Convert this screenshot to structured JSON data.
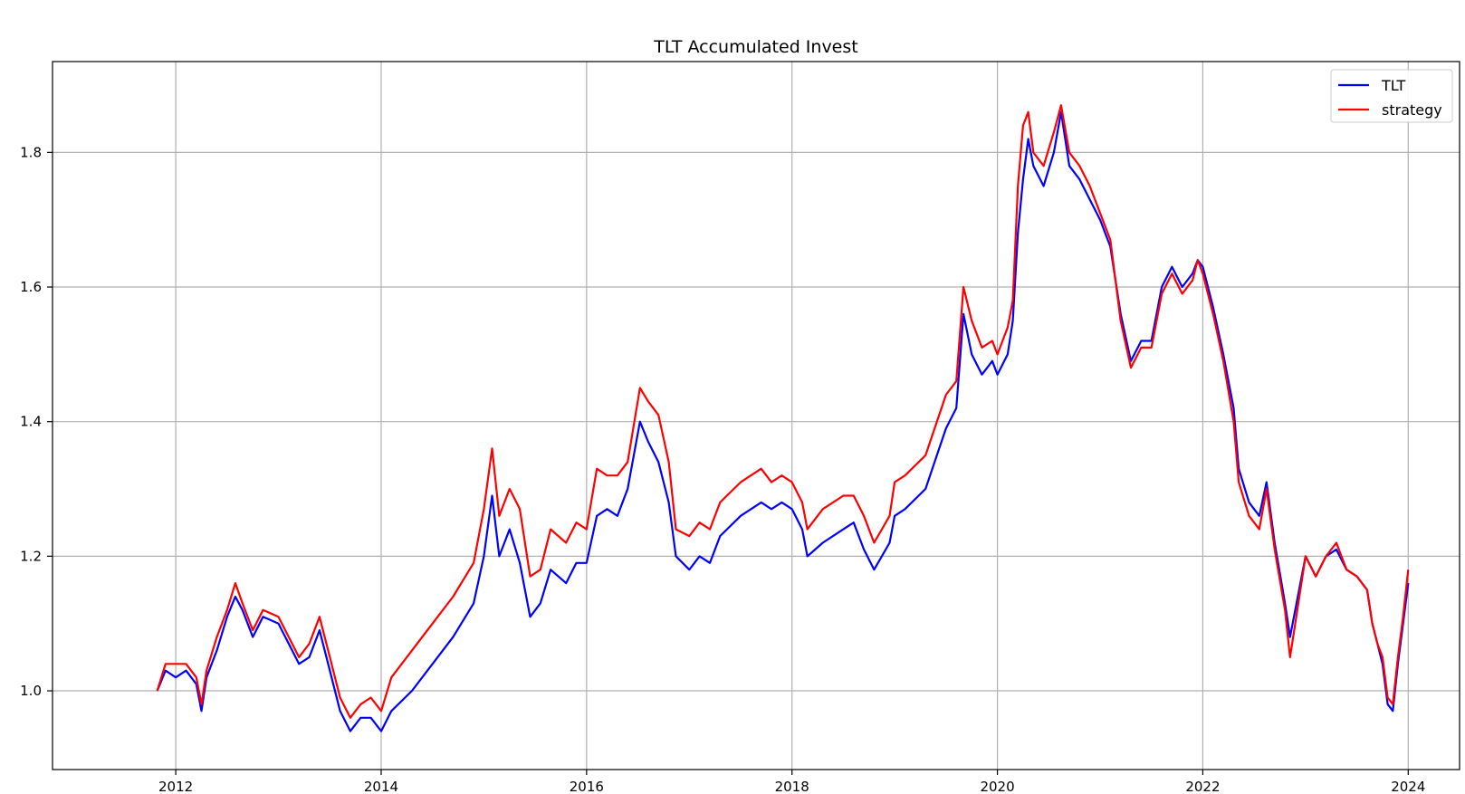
{
  "chart_data": {
    "type": "line",
    "title": "TLT Accumulated Invest",
    "xlabel": "",
    "ylabel": "",
    "grid": true,
    "legend_position": "top-right",
    "xlim": [
      2010.8,
      2024.5
    ],
    "ylim": [
      0.883,
      1.935
    ],
    "x_ticks": [
      2012,
      2014,
      2016,
      2018,
      2020,
      2022,
      2024
    ],
    "x_tick_labels": [
      "2012",
      "2014",
      "2016",
      "2018",
      "2020",
      "2022",
      "2024"
    ],
    "y_ticks": [
      1.0,
      1.2,
      1.4,
      1.6,
      1.8
    ],
    "y_tick_labels": [
      "1.0",
      "1.2",
      "1.4",
      "1.6",
      "1.8"
    ],
    "series": [
      {
        "name": "TLT",
        "color": "#0000ff",
        "points": [
          [
            2011.82,
            1.0
          ],
          [
            2011.9,
            1.03
          ],
          [
            2012.0,
            1.02
          ],
          [
            2012.1,
            1.03
          ],
          [
            2012.2,
            1.01
          ],
          [
            2012.25,
            0.97
          ],
          [
            2012.3,
            1.02
          ],
          [
            2012.4,
            1.06
          ],
          [
            2012.5,
            1.11
          ],
          [
            2012.58,
            1.14
          ],
          [
            2012.65,
            1.12
          ],
          [
            2012.75,
            1.08
          ],
          [
            2012.85,
            1.11
          ],
          [
            2013.0,
            1.1
          ],
          [
            2013.1,
            1.07
          ],
          [
            2013.2,
            1.04
          ],
          [
            2013.3,
            1.05
          ],
          [
            2013.4,
            1.09
          ],
          [
            2013.5,
            1.03
          ],
          [
            2013.6,
            0.97
          ],
          [
            2013.7,
            0.94
          ],
          [
            2013.8,
            0.96
          ],
          [
            2013.9,
            0.96
          ],
          [
            2014.0,
            0.94
          ],
          [
            2014.1,
            0.97
          ],
          [
            2014.3,
            1.0
          ],
          [
            2014.5,
            1.04
          ],
          [
            2014.7,
            1.08
          ],
          [
            2014.9,
            1.13
          ],
          [
            2015.0,
            1.2
          ],
          [
            2015.08,
            1.29
          ],
          [
            2015.15,
            1.2
          ],
          [
            2015.25,
            1.24
          ],
          [
            2015.35,
            1.19
          ],
          [
            2015.45,
            1.11
          ],
          [
            2015.55,
            1.13
          ],
          [
            2015.65,
            1.18
          ],
          [
            2015.8,
            1.16
          ],
          [
            2015.9,
            1.19
          ],
          [
            2016.0,
            1.19
          ],
          [
            2016.1,
            1.26
          ],
          [
            2016.2,
            1.27
          ],
          [
            2016.3,
            1.26
          ],
          [
            2016.4,
            1.3
          ],
          [
            2016.52,
            1.4
          ],
          [
            2016.6,
            1.37
          ],
          [
            2016.7,
            1.34
          ],
          [
            2016.8,
            1.28
          ],
          [
            2016.87,
            1.2
          ],
          [
            2017.0,
            1.18
          ],
          [
            2017.1,
            1.2
          ],
          [
            2017.2,
            1.19
          ],
          [
            2017.3,
            1.23
          ],
          [
            2017.5,
            1.26
          ],
          [
            2017.7,
            1.28
          ],
          [
            2017.8,
            1.27
          ],
          [
            2017.9,
            1.28
          ],
          [
            2018.0,
            1.27
          ],
          [
            2018.1,
            1.24
          ],
          [
            2018.15,
            1.2
          ],
          [
            2018.3,
            1.22
          ],
          [
            2018.5,
            1.24
          ],
          [
            2018.6,
            1.25
          ],
          [
            2018.7,
            1.21
          ],
          [
            2018.8,
            1.18
          ],
          [
            2018.95,
            1.22
          ],
          [
            2019.0,
            1.26
          ],
          [
            2019.1,
            1.27
          ],
          [
            2019.3,
            1.3
          ],
          [
            2019.5,
            1.39
          ],
          [
            2019.6,
            1.42
          ],
          [
            2019.67,
            1.56
          ],
          [
            2019.75,
            1.5
          ],
          [
            2019.85,
            1.47
          ],
          [
            2019.95,
            1.49
          ],
          [
            2020.0,
            1.47
          ],
          [
            2020.1,
            1.5
          ],
          [
            2020.15,
            1.55
          ],
          [
            2020.2,
            1.68
          ],
          [
            2020.25,
            1.76
          ],
          [
            2020.3,
            1.82
          ],
          [
            2020.35,
            1.78
          ],
          [
            2020.45,
            1.75
          ],
          [
            2020.55,
            1.8
          ],
          [
            2020.62,
            1.86
          ],
          [
            2020.7,
            1.78
          ],
          [
            2020.8,
            1.76
          ],
          [
            2020.9,
            1.73
          ],
          [
            2021.0,
            1.7
          ],
          [
            2021.1,
            1.66
          ],
          [
            2021.2,
            1.56
          ],
          [
            2021.3,
            1.49
          ],
          [
            2021.4,
            1.52
          ],
          [
            2021.5,
            1.52
          ],
          [
            2021.6,
            1.6
          ],
          [
            2021.7,
            1.63
          ],
          [
            2021.8,
            1.6
          ],
          [
            2021.9,
            1.62
          ],
          [
            2021.95,
            1.64
          ],
          [
            2022.0,
            1.63
          ],
          [
            2022.1,
            1.57
          ],
          [
            2022.2,
            1.5
          ],
          [
            2022.3,
            1.42
          ],
          [
            2022.35,
            1.33
          ],
          [
            2022.45,
            1.28
          ],
          [
            2022.55,
            1.26
          ],
          [
            2022.62,
            1.31
          ],
          [
            2022.7,
            1.22
          ],
          [
            2022.8,
            1.13
          ],
          [
            2022.85,
            1.08
          ],
          [
            2022.95,
            1.16
          ],
          [
            2023.0,
            1.2
          ],
          [
            2023.1,
            1.17
          ],
          [
            2023.2,
            1.2
          ],
          [
            2023.3,
            1.21
          ],
          [
            2023.4,
            1.18
          ],
          [
            2023.5,
            1.17
          ],
          [
            2023.6,
            1.15
          ],
          [
            2023.65,
            1.1
          ],
          [
            2023.7,
            1.07
          ],
          [
            2023.75,
            1.04
          ],
          [
            2023.8,
            0.98
          ],
          [
            2023.85,
            0.97
          ],
          [
            2023.9,
            1.04
          ],
          [
            2023.95,
            1.1
          ],
          [
            2024.0,
            1.16
          ]
        ]
      },
      {
        "name": "strategy",
        "color": "#ff0000",
        "points": [
          [
            2011.82,
            1.0
          ],
          [
            2011.9,
            1.04
          ],
          [
            2012.0,
            1.04
          ],
          [
            2012.1,
            1.04
          ],
          [
            2012.2,
            1.02
          ],
          [
            2012.25,
            0.98
          ],
          [
            2012.3,
            1.03
          ],
          [
            2012.4,
            1.08
          ],
          [
            2012.5,
            1.12
          ],
          [
            2012.58,
            1.16
          ],
          [
            2012.65,
            1.13
          ],
          [
            2012.75,
            1.09
          ],
          [
            2012.85,
            1.12
          ],
          [
            2013.0,
            1.11
          ],
          [
            2013.1,
            1.08
          ],
          [
            2013.2,
            1.05
          ],
          [
            2013.3,
            1.07
          ],
          [
            2013.4,
            1.11
          ],
          [
            2013.5,
            1.05
          ],
          [
            2013.6,
            0.99
          ],
          [
            2013.7,
            0.96
          ],
          [
            2013.8,
            0.98
          ],
          [
            2013.9,
            0.99
          ],
          [
            2014.0,
            0.97
          ],
          [
            2014.1,
            1.02
          ],
          [
            2014.3,
            1.06
          ],
          [
            2014.5,
            1.1
          ],
          [
            2014.7,
            1.14
          ],
          [
            2014.9,
            1.19
          ],
          [
            2015.0,
            1.27
          ],
          [
            2015.08,
            1.36
          ],
          [
            2015.15,
            1.26
          ],
          [
            2015.25,
            1.3
          ],
          [
            2015.35,
            1.27
          ],
          [
            2015.45,
            1.17
          ],
          [
            2015.55,
            1.18
          ],
          [
            2015.65,
            1.24
          ],
          [
            2015.8,
            1.22
          ],
          [
            2015.9,
            1.25
          ],
          [
            2016.0,
            1.24
          ],
          [
            2016.1,
            1.33
          ],
          [
            2016.2,
            1.32
          ],
          [
            2016.3,
            1.32
          ],
          [
            2016.4,
            1.34
          ],
          [
            2016.52,
            1.45
          ],
          [
            2016.6,
            1.43
          ],
          [
            2016.7,
            1.41
          ],
          [
            2016.8,
            1.34
          ],
          [
            2016.87,
            1.24
          ],
          [
            2017.0,
            1.23
          ],
          [
            2017.1,
            1.25
          ],
          [
            2017.2,
            1.24
          ],
          [
            2017.3,
            1.28
          ],
          [
            2017.5,
            1.31
          ],
          [
            2017.7,
            1.33
          ],
          [
            2017.8,
            1.31
          ],
          [
            2017.9,
            1.32
          ],
          [
            2018.0,
            1.31
          ],
          [
            2018.1,
            1.28
          ],
          [
            2018.15,
            1.24
          ],
          [
            2018.3,
            1.27
          ],
          [
            2018.5,
            1.29
          ],
          [
            2018.6,
            1.29
          ],
          [
            2018.7,
            1.26
          ],
          [
            2018.8,
            1.22
          ],
          [
            2018.95,
            1.26
          ],
          [
            2019.0,
            1.31
          ],
          [
            2019.1,
            1.32
          ],
          [
            2019.3,
            1.35
          ],
          [
            2019.5,
            1.44
          ],
          [
            2019.6,
            1.46
          ],
          [
            2019.67,
            1.6
          ],
          [
            2019.75,
            1.55
          ],
          [
            2019.85,
            1.51
          ],
          [
            2019.95,
            1.52
          ],
          [
            2020.0,
            1.5
          ],
          [
            2020.1,
            1.54
          ],
          [
            2020.15,
            1.58
          ],
          [
            2020.2,
            1.75
          ],
          [
            2020.25,
            1.84
          ],
          [
            2020.3,
            1.86
          ],
          [
            2020.35,
            1.8
          ],
          [
            2020.45,
            1.78
          ],
          [
            2020.55,
            1.83
          ],
          [
            2020.62,
            1.87
          ],
          [
            2020.7,
            1.8
          ],
          [
            2020.8,
            1.78
          ],
          [
            2020.9,
            1.75
          ],
          [
            2021.0,
            1.71
          ],
          [
            2021.1,
            1.67
          ],
          [
            2021.2,
            1.55
          ],
          [
            2021.3,
            1.48
          ],
          [
            2021.4,
            1.51
          ],
          [
            2021.5,
            1.51
          ],
          [
            2021.6,
            1.59
          ],
          [
            2021.7,
            1.62
          ],
          [
            2021.8,
            1.59
          ],
          [
            2021.9,
            1.61
          ],
          [
            2021.95,
            1.64
          ],
          [
            2022.0,
            1.62
          ],
          [
            2022.1,
            1.56
          ],
          [
            2022.2,
            1.49
          ],
          [
            2022.3,
            1.4
          ],
          [
            2022.35,
            1.31
          ],
          [
            2022.45,
            1.26
          ],
          [
            2022.55,
            1.24
          ],
          [
            2022.62,
            1.3
          ],
          [
            2022.7,
            1.21
          ],
          [
            2022.8,
            1.12
          ],
          [
            2022.85,
            1.05
          ],
          [
            2022.95,
            1.15
          ],
          [
            2023.0,
            1.2
          ],
          [
            2023.1,
            1.17
          ],
          [
            2023.2,
            1.2
          ],
          [
            2023.3,
            1.22
          ],
          [
            2023.4,
            1.18
          ],
          [
            2023.5,
            1.17
          ],
          [
            2023.6,
            1.15
          ],
          [
            2023.65,
            1.1
          ],
          [
            2023.7,
            1.07
          ],
          [
            2023.75,
            1.05
          ],
          [
            2023.8,
            0.99
          ],
          [
            2023.85,
            0.98
          ],
          [
            2023.9,
            1.05
          ],
          [
            2023.95,
            1.11
          ],
          [
            2024.0,
            1.18
          ]
        ]
      }
    ]
  }
}
